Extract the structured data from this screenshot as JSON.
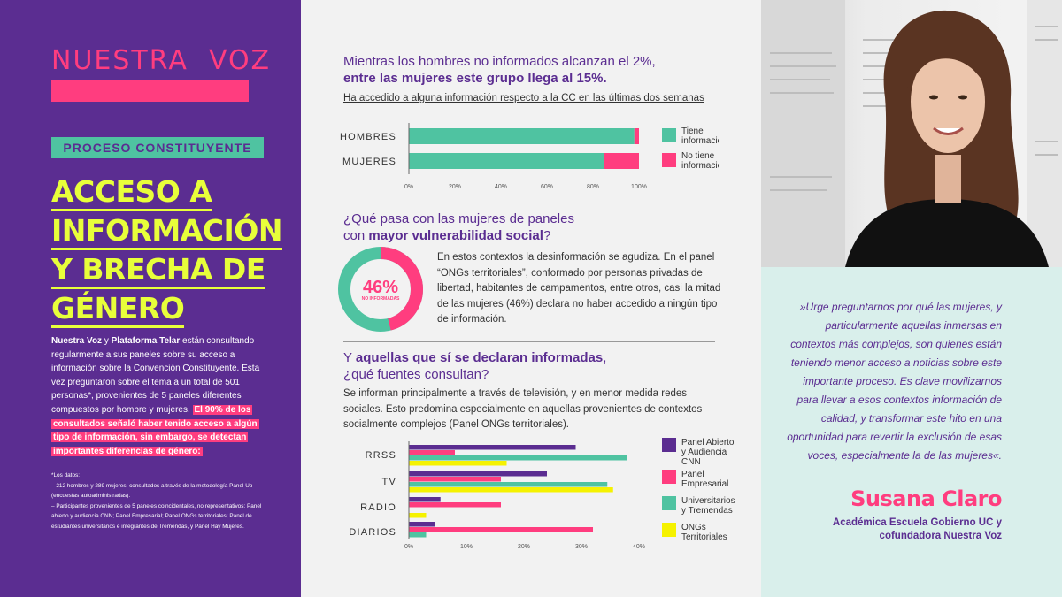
{
  "left": {
    "logo": "NUESTRA  VOZ",
    "section": "PROCESO CONSTITUYENTE",
    "headline": [
      "ACCESO A",
      "INFORMACIÓN",
      "Y BRECHA DE",
      "GÉNERO"
    ],
    "intro_b1": "Nuestra Voz",
    "intro_t1": " y ",
    "intro_b2": "Plataforma Telar",
    "intro_t2": " están consultando regularmente a sus paneles sobre su acceso a información sobre la Convención Constituyente. Esta vez preguntaron sobre el tema a un total de 501 personas*, provenientes de 5 paneles diferentes compuestos por hombre y mujeres.",
    "intro_hi": "El 90% de los consultados señaló haber tenido acceso a algún tipo de información, sin embargo, se detectan importantes diferencias de género:",
    "notes": [
      "*Los datos:",
      "– 212 hombres y 289 mujeres, consultados a través de la metodología Panel Up (encuestas autoadministradas).",
      "– Participantes provenientes de 5 paneles coincidentales, no representativos: Panel abierto y audiencia CNN; Panel Empresarial; Panel ONGs territoriales; Panel de estudiantes universitarios e integrantes de Tremendas, y Panel Hay Mujeres."
    ]
  },
  "section1": {
    "title_1": "Mientras los hombres no informados alcanzan el 2%,",
    "title_2": "entre las mujeres este grupo llega al 15%.",
    "subtitle": "Ha accedido a alguna información respecto a la CC en las últimas dos semanas"
  },
  "section2": {
    "title_1": "¿Qué pasa con las mujeres de paneles",
    "title_2a": "con ",
    "title_2b": "mayor vulnerabilidad social",
    "title_2c": "?",
    "body": "En estos contextos la desinformación se agudiza. En el panel “ONGs territoriales”, conformado por personas privadas de libertad, habitantes de campamentos, entre otros, casi la mitad de las mujeres (46%) declara no haber accedido a ningún tipo de información.",
    "donut_value": 46,
    "donut_label": "46%",
    "donut_sub": "NO INFORMADAS"
  },
  "section3": {
    "title_1a": "Y ",
    "title_1b": "aquellas que sí se declaran informadas",
    "title_1c": ",",
    "title_2": "¿qué fuentes consultan?",
    "body": "Se informan principalmente a través de televisión, y en menor medida redes sociales. Esto predomina especialmente en aquellas provenientes de contextos socialmente complejos (Panel ONGs territoriales)."
  },
  "quote": {
    "text": "»Urge preguntarnos por qué las mujeres, y particularmente aquellas inmersas en contextos más complejos, son quienes están teniendo menor acceso a noticias sobre este importante proceso. Es clave movilizarnos para llevar a esos contextos información de calidad, y transformar este hito en una oportunidad para revertir la exclusión de esas voces, especialmente la de las mujeres«.",
    "author": "Susana Claro",
    "role_1": "Académica Escuela Gobierno UC y",
    "role_2": "cofundadora Nuestra Voz"
  },
  "colors": {
    "purple": "#5b2d91",
    "pink": "#ff3d7f",
    "teal": "#4fc3a1",
    "yellow": "#f5f200",
    "lime": "#e8ff3a"
  },
  "chart_data": [
    {
      "type": "bar",
      "orientation": "horizontal",
      "stacked": true,
      "categories": [
        "HOMBRES",
        "MUJERES"
      ],
      "series": [
        {
          "name": "Tiene información",
          "color": "#4fc3a1",
          "values": [
            98,
            85
          ]
        },
        {
          "name": "No tiene información",
          "color": "#ff3d7f",
          "values": [
            2,
            15
          ]
        }
      ],
      "xlim": [
        0,
        100
      ],
      "xticks": [
        "0%",
        "20%",
        "40%",
        "60%",
        "80%",
        "100%"
      ],
      "legend": "right"
    },
    {
      "type": "bar",
      "orientation": "horizontal",
      "categories": [
        "RRSS",
        "TV",
        "RADIO",
        "DIARIOS"
      ],
      "series": [
        {
          "name": "Panel Abierto y Audiencia CNN",
          "color": "#5b2d91",
          "values": [
            29,
            24,
            5.5,
            4.5
          ]
        },
        {
          "name": "Panel Empresarial",
          "color": "#ff3d7f",
          "values": [
            8,
            16,
            16,
            32
          ]
        },
        {
          "name": "Universitarios y Tremendas",
          "color": "#4fc3a1",
          "values": [
            38,
            34.5,
            0,
            3
          ]
        },
        {
          "name": "ONGs Territoriales",
          "color": "#f5f200",
          "values": [
            17,
            35.5,
            3,
            0
          ]
        }
      ],
      "xlim": [
        0,
        40
      ],
      "xticks": [
        "0%",
        "10%",
        "20%",
        "30%",
        "40%"
      ],
      "legend": "right"
    }
  ]
}
